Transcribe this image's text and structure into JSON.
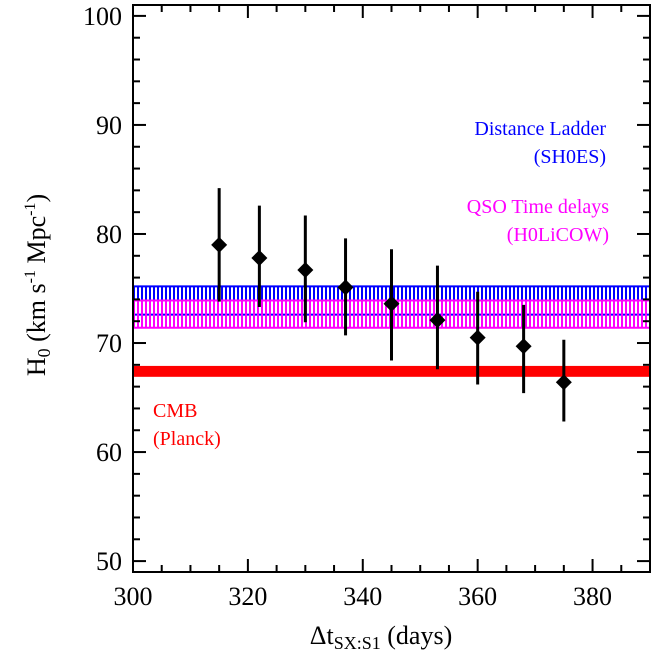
{
  "chart_data": {
    "type": "scatter",
    "xlabel": {
      "main": "Δt",
      "sub": "SX:S1",
      "suffix": " (days)"
    },
    "ylabel": {
      "main": "H",
      "sub": "0",
      "part1": " (km s",
      "sup1": "-1",
      "part2": " Mpc",
      "sup2": "-1",
      "part3": ")"
    },
    "xlim": [
      300,
      390
    ],
    "ylim": [
      49,
      101
    ],
    "x_ticks": [
      300,
      320,
      340,
      360,
      380
    ],
    "y_ticks": [
      50,
      60,
      70,
      80,
      90,
      100
    ],
    "grid": false,
    "series": [
      {
        "marker": "diamond",
        "color": "#000000",
        "points": [
          {
            "x": 315,
            "y": 79.0,
            "lo": 73.8,
            "hi": 84.2
          },
          {
            "x": 322,
            "y": 77.8,
            "lo": 73.3,
            "hi": 82.6
          },
          {
            "x": 330,
            "y": 76.7,
            "lo": 71.9,
            "hi": 81.7
          },
          {
            "x": 337,
            "y": 75.1,
            "lo": 70.7,
            "hi": 79.6
          },
          {
            "x": 345,
            "y": 73.6,
            "lo": 68.4,
            "hi": 78.6
          },
          {
            "x": 353,
            "y": 72.1,
            "lo": 67.6,
            "hi": 77.1
          },
          {
            "x": 360,
            "y": 70.5,
            "lo": 66.2,
            "hi": 74.7
          },
          {
            "x": 368,
            "y": 69.7,
            "lo": 65.4,
            "hi": 73.5
          },
          {
            "x": 375,
            "y": 66.4,
            "lo": 62.8,
            "hi": 70.3
          }
        ]
      }
    ],
    "bands": [
      {
        "color": "#0000ff",
        "y_lo": 72.6,
        "y_hi": 75.2,
        "style": "hatched"
      },
      {
        "color": "#ff00ff",
        "y_lo": 71.4,
        "y_hi": 73.9,
        "style": "hatched"
      },
      {
        "color": "#ff0000",
        "y_lo": 66.9,
        "y_hi": 67.9,
        "style": "solid"
      }
    ],
    "annotations": [
      {
        "lines": [
          "Distance Ladder",
          "(SH0ES)"
        ],
        "color": "#0000ff",
        "anchor": "end"
      },
      {
        "lines": [
          "QSO Time delays",
          "(H0LiCOW)"
        ],
        "color": "#ff00ff",
        "anchor": "end"
      },
      {
        "lines": [
          "CMB",
          "(Planck)"
        ],
        "color": "#ff0000",
        "anchor": "start"
      }
    ]
  }
}
